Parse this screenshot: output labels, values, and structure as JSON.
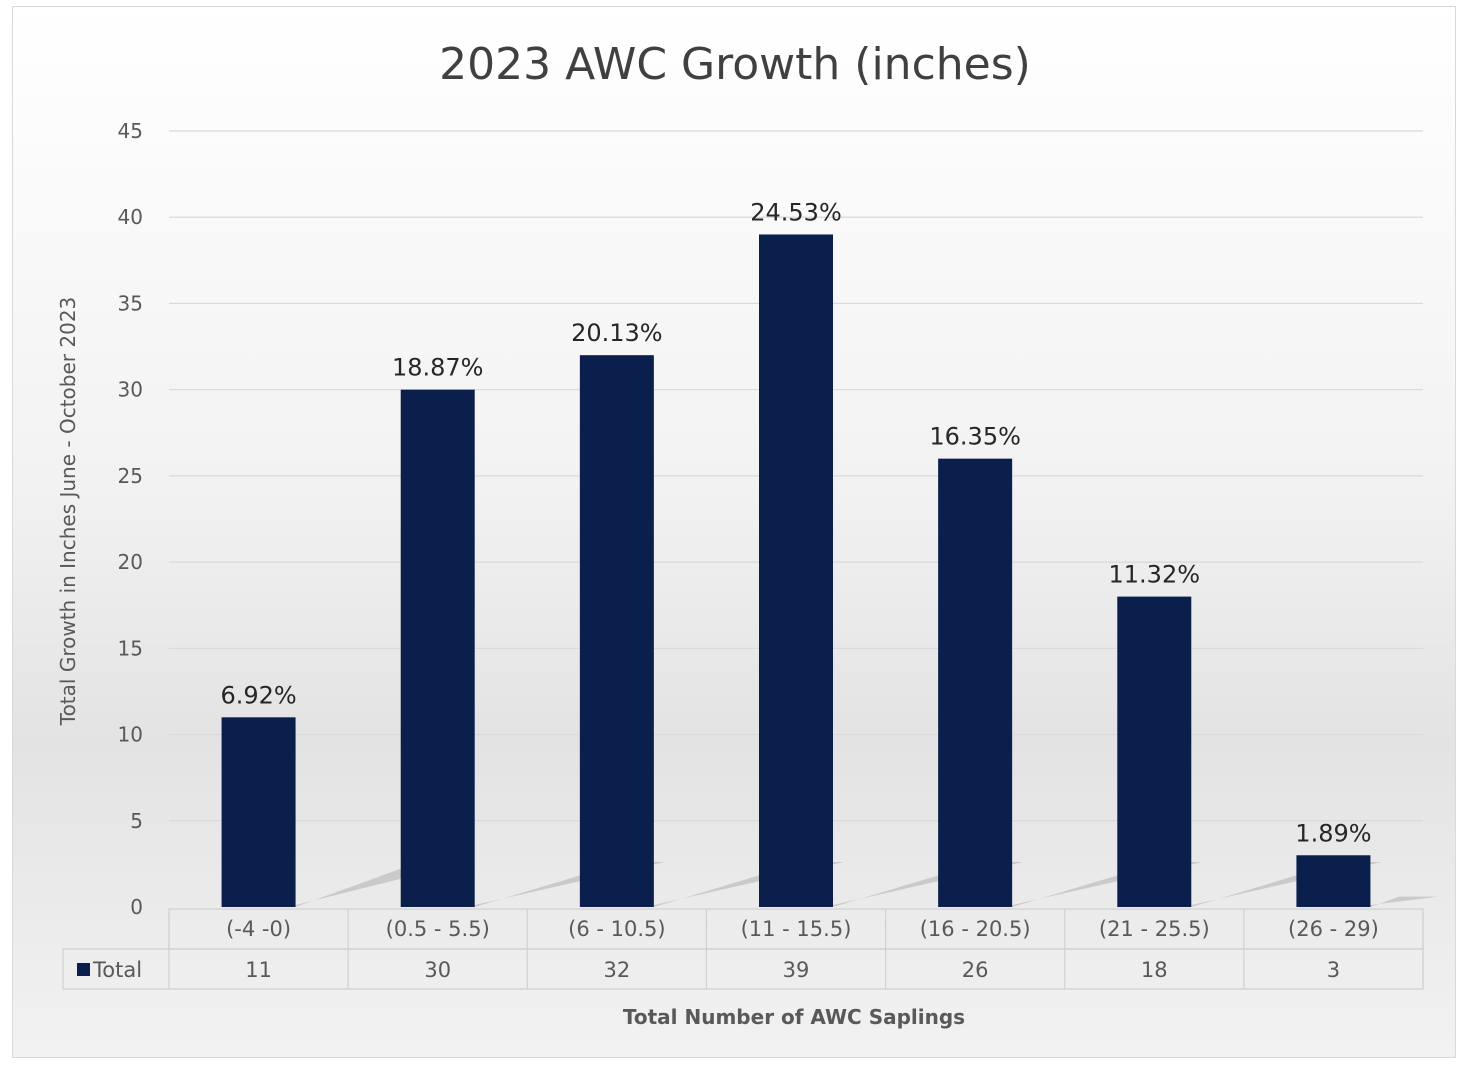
{
  "chart_data": {
    "type": "bar",
    "title": "2023 AWC Growth (inches)",
    "xlabel": "Total Number of AWC Saplings",
    "ylabel": "Total Growth in Inches June - October 2023",
    "ylim": [
      0,
      45
    ],
    "ytick_step": 5,
    "yticks": [
      "0",
      "5",
      "10",
      "15",
      "20",
      "25",
      "30",
      "35",
      "40",
      "45"
    ],
    "grid": true,
    "categories": [
      "(-4 -0)",
      "(0.5 - 5.5)",
      "(6 - 10.5)",
      "(11 - 15.5)",
      "(16 - 20.5)",
      "(21 - 25.5)",
      "(26 - 29)"
    ],
    "series": [
      {
        "name": "Total",
        "color": "#0b1f4d",
        "values": [
          11,
          30,
          32,
          39,
          26,
          18,
          3
        ],
        "value_labels": [
          "11",
          "30",
          "32",
          "39",
          "26",
          "18",
          "3"
        ],
        "data_labels": [
          "6.92%",
          "18.87%",
          "20.13%",
          "24.53%",
          "16.35%",
          "11.32%",
          "1.89%"
        ]
      }
    ],
    "legend": "data-table",
    "data_table": true
  }
}
